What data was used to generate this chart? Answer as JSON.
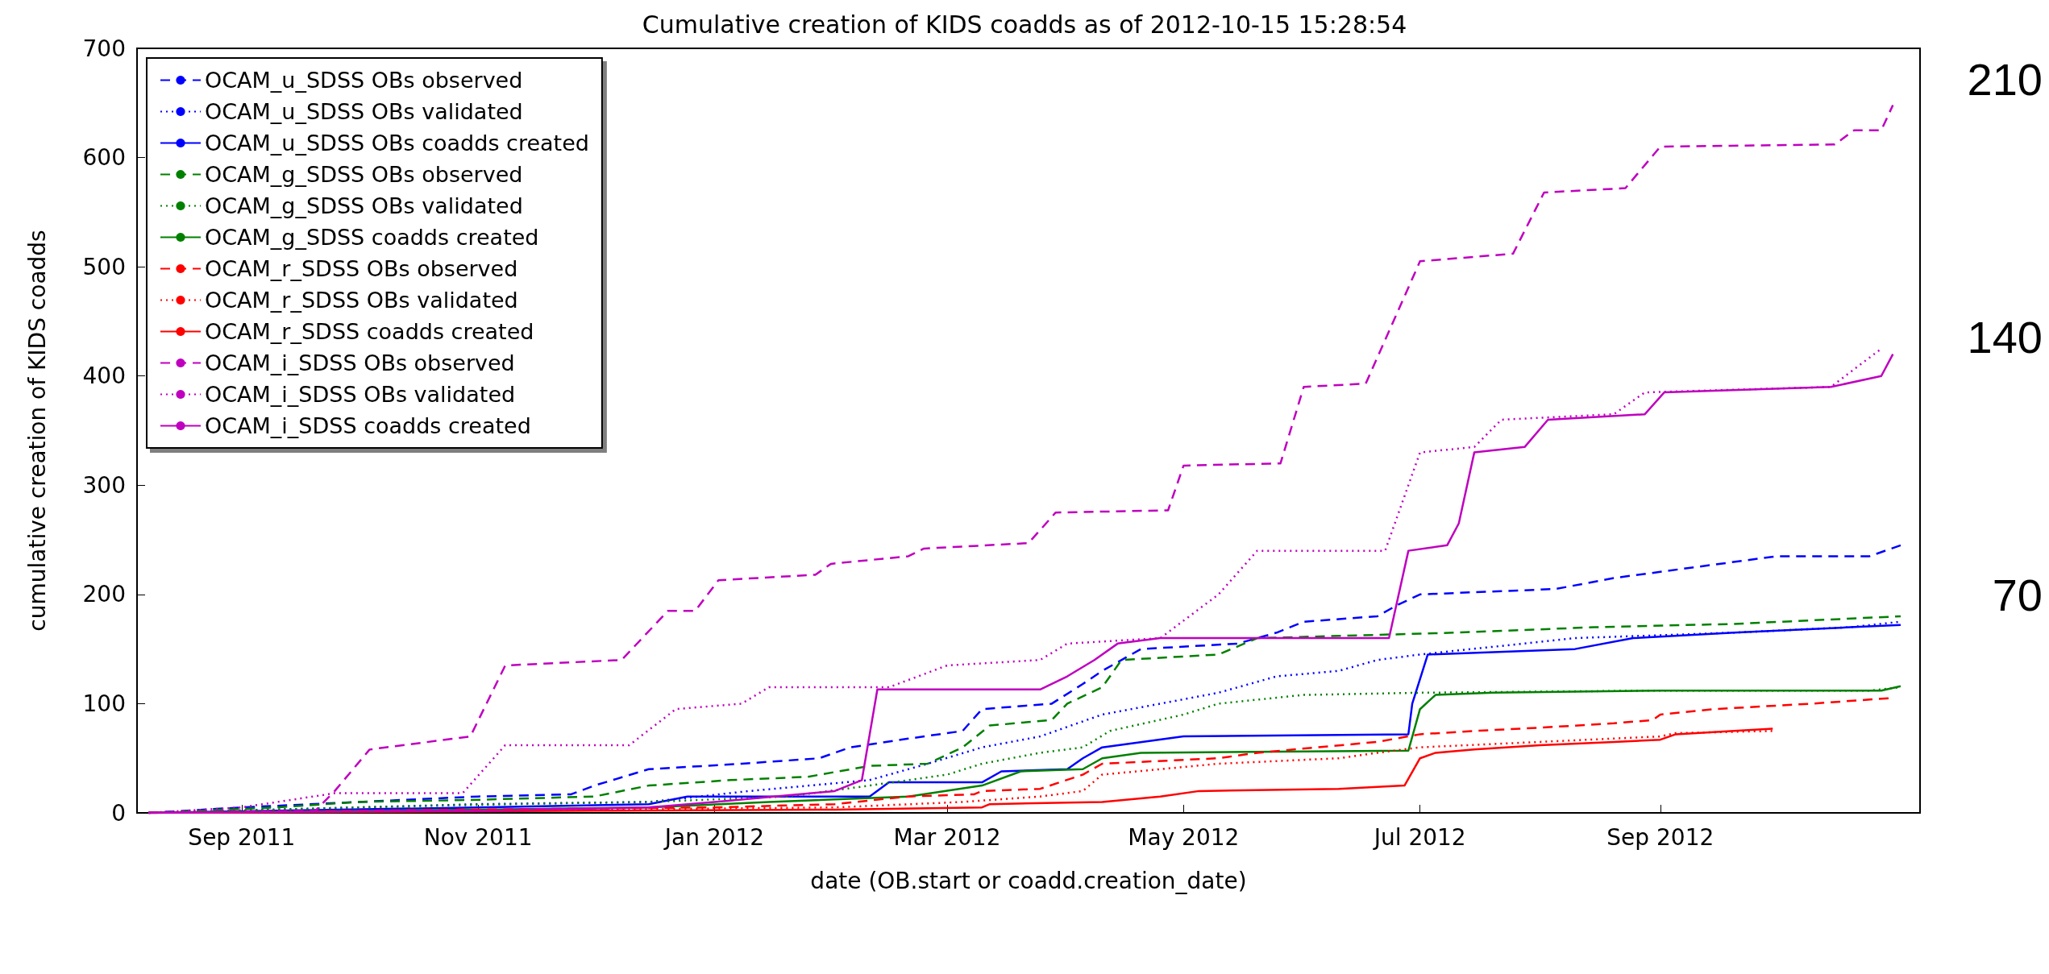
{
  "chart_data": {
    "type": "line",
    "title": "Cumulative creation of KIDS coadds as of 2012-10-15 15:28:54",
    "xlabel": "date (OB.start or coadd.creation_date)",
    "ylabel": "cumulative creation of KIDS coadds",
    "xlim": [
      "2011-08-05",
      "2012-11-07"
    ],
    "xticks": [
      {
        "value": "2011-09-01",
        "label": "Sep 2011"
      },
      {
        "value": "2011-11-01",
        "label": "Nov 2011"
      },
      {
        "value": "2012-01-01",
        "label": "Jan 2012"
      },
      {
        "value": "2012-03-01",
        "label": "Mar 2012"
      },
      {
        "value": "2012-05-01",
        "label": "May 2012"
      },
      {
        "value": "2012-07-01",
        "label": "Jul 2012"
      },
      {
        "value": "2012-09-01",
        "label": "Sep 2012"
      }
    ],
    "ylim": [
      0,
      700
    ],
    "yticks": [
      0,
      100,
      200,
      300,
      400,
      500,
      600,
      700
    ],
    "grid": false,
    "legend": "top left",
    "marker": "none",
    "annotations": [
      "210",
      "140",
      "70"
    ],
    "series": [
      {
        "name": "OCAM_u_SDSS OBs observed",
        "color": "#0000ff",
        "line_style": "dashed",
        "x": [
          "2011-08-08",
          "2011-09-01",
          "2011-10-01",
          "2011-11-01",
          "2011-11-25",
          "2011-12-01",
          "2011-12-15",
          "2012-01-08",
          "2012-01-28",
          "2012-02-05",
          "2012-02-20",
          "2012-03-05",
          "2012-03-10",
          "2012-03-28",
          "2012-04-05",
          "2012-04-10",
          "2012-04-20",
          "2012-05-15",
          "2012-05-25",
          "2012-06-01",
          "2012-06-20",
          "2012-06-25",
          "2012-07-01",
          "2012-08-05",
          "2012-08-20",
          "2012-09-10",
          "2012-10-01",
          "2012-10-25",
          "2012-11-02"
        ],
        "values": [
          0,
          5,
          10,
          15,
          17,
          25,
          40,
          45,
          50,
          60,
          68,
          75,
          95,
          100,
          118,
          130,
          150,
          155,
          165,
          175,
          180,
          190,
          200,
          205,
          215,
          225,
          235,
          235,
          245
        ]
      },
      {
        "name": "OCAM_u_SDSS OBs validated",
        "color": "#0000ff",
        "line_style": "dotted",
        "x": [
          "2011-08-08",
          "2011-10-01",
          "2011-11-01",
          "2011-12-15",
          "2012-01-10",
          "2012-02-10",
          "2012-02-25",
          "2012-03-10",
          "2012-03-25",
          "2012-04-10",
          "2012-04-25",
          "2012-05-10",
          "2012-05-25",
          "2012-06-10",
          "2012-06-20",
          "2012-07-01",
          "2012-08-10",
          "2012-09-20",
          "2012-10-20",
          "2012-11-02"
        ],
        "values": [
          0,
          5,
          8,
          10,
          20,
          30,
          45,
          60,
          70,
          90,
          100,
          110,
          125,
          130,
          140,
          145,
          160,
          165,
          170,
          175
        ]
      },
      {
        "name": "OCAM_u_SDSS OBs coadds created",
        "color": "#0000ff",
        "line_style": "solid",
        "x": [
          "2011-08-08",
          "2011-11-01",
          "2011-12-15",
          "2011-12-25",
          "2012-02-10",
          "2012-02-15",
          "2012-03-10",
          "2012-03-15",
          "2012-04-01",
          "2012-04-05",
          "2012-04-10",
          "2012-05-01",
          "2012-06-28",
          "2012-06-29",
          "2012-07-03",
          "2012-08-10",
          "2012-08-25",
          "2012-09-20",
          "2012-10-20",
          "2012-11-02"
        ],
        "values": [
          0,
          5,
          8,
          15,
          15,
          28,
          28,
          38,
          40,
          50,
          60,
          70,
          72,
          100,
          145,
          150,
          160,
          165,
          170,
          172
        ]
      },
      {
        "name": "OCAM_g_SDSS OBs observed",
        "color": "#008000",
        "line_style": "dashed",
        "x": [
          "2011-08-08",
          "2011-09-10",
          "2011-10-01",
          "2011-11-01",
          "2011-12-01",
          "2011-12-15",
          "2012-01-05",
          "2012-01-25",
          "2012-02-10",
          "2012-02-25",
          "2012-03-05",
          "2012-03-12",
          "2012-03-28",
          "2012-04-01",
          "2012-04-10",
          "2012-04-15",
          "2012-05-10",
          "2012-05-20",
          "2012-06-10",
          "2012-07-10",
          "2012-08-15",
          "2012-09-20",
          "2012-11-02"
        ],
        "values": [
          0,
          5,
          10,
          12,
          15,
          25,
          30,
          33,
          43,
          45,
          60,
          80,
          85,
          100,
          115,
          140,
          145,
          160,
          162,
          165,
          170,
          173,
          180
        ]
      },
      {
        "name": "OCAM_g_SDSS OBs validated",
        "color": "#008000",
        "line_style": "dotted",
        "x": [
          "2011-08-08",
          "2011-10-01",
          "2011-11-10",
          "2011-12-15",
          "2012-01-20",
          "2012-02-10",
          "2012-03-01",
          "2012-03-10",
          "2012-03-25",
          "2012-04-05",
          "2012-04-12",
          "2012-05-01",
          "2012-05-10",
          "2012-06-01",
          "2012-07-01",
          "2012-09-01",
          "2012-10-25",
          "2012-11-02"
        ],
        "values": [
          0,
          5,
          8,
          10,
          15,
          25,
          35,
          45,
          55,
          60,
          75,
          90,
          100,
          108,
          110,
          112,
          112,
          115
        ]
      },
      {
        "name": "OCAM_g_SDSS coadds created",
        "color": "#008000",
        "line_style": "solid",
        "x": [
          "2011-08-08",
          "2011-11-01",
          "2011-12-15",
          "2012-01-15",
          "2012-02-20",
          "2012-03-10",
          "2012-03-20",
          "2012-04-05",
          "2012-04-10",
          "2012-04-20",
          "2012-06-28",
          "2012-07-01",
          "2012-07-05",
          "2012-07-20",
          "2012-09-01",
          "2012-10-28",
          "2012-11-02"
        ],
        "values": [
          0,
          3,
          5,
          10,
          15,
          25,
          38,
          40,
          50,
          55,
          57,
          95,
          108,
          110,
          112,
          112,
          116
        ]
      },
      {
        "name": "OCAM_r_SDSS OBs observed",
        "color": "#ff0000",
        "line_style": "dashed",
        "x": [
          "2011-08-08",
          "2011-11-01",
          "2012-01-01",
          "2012-02-01",
          "2012-02-20",
          "2012-03-08",
          "2012-03-10",
          "2012-03-25",
          "2012-04-05",
          "2012-04-10",
          "2012-05-10",
          "2012-05-20",
          "2012-06-20",
          "2012-07-01",
          "2012-07-15",
          "2012-08-01",
          "2012-08-20",
          "2012-08-30",
          "2012-09-01",
          "2012-09-15",
          "2012-10-10",
          "2012-10-30"
        ],
        "values": [
          0,
          3,
          5,
          8,
          15,
          17,
          20,
          22,
          35,
          45,
          50,
          55,
          65,
          72,
          75,
          78,
          82,
          85,
          90,
          95,
          100,
          105
        ]
      },
      {
        "name": "OCAM_r_SDSS OBs validated",
        "color": "#ff0000",
        "line_style": "dotted",
        "x": [
          "2011-08-08",
          "2011-12-01",
          "2012-02-01",
          "2012-03-05",
          "2012-03-25",
          "2012-04-05",
          "2012-04-10",
          "2012-05-10",
          "2012-06-10",
          "2012-06-20",
          "2012-07-01",
          "2012-08-01",
          "2012-09-01",
          "2012-09-05",
          "2012-09-30"
        ],
        "values": [
          0,
          3,
          5,
          10,
          15,
          20,
          35,
          45,
          50,
          55,
          60,
          65,
          70,
          73,
          75
        ]
      },
      {
        "name": "OCAM_r_SDSS coadds created",
        "color": "#ff0000",
        "line_style": "solid",
        "x": [
          "2011-08-08",
          "2011-12-01",
          "2012-02-01",
          "2012-03-10",
          "2012-03-12",
          "2012-04-10",
          "2012-04-25",
          "2012-05-05",
          "2012-06-10",
          "2012-06-27",
          "2012-07-01",
          "2012-07-05",
          "2012-07-15",
          "2012-08-01",
          "2012-08-20",
          "2012-09-01",
          "2012-09-05",
          "2012-09-20",
          "2012-09-30"
        ],
        "values": [
          0,
          2,
          3,
          5,
          8,
          10,
          15,
          20,
          22,
          25,
          50,
          55,
          58,
          62,
          65,
          67,
          72,
          75,
          77
        ]
      },
      {
        "name": "OCAM_i_SDSS OBs observed",
        "color": "#bf00bf",
        "line_style": "dashed",
        "x": [
          "2011-08-08",
          "2011-09-20",
          "2011-09-25",
          "2011-10-04",
          "2011-10-30",
          "2011-11-08",
          "2011-12-08",
          "2011-12-20",
          "2011-12-27",
          "2012-01-02",
          "2012-01-27",
          "2012-01-31",
          "2012-02-20",
          "2012-02-24",
          "2012-03-22",
          "2012-03-29",
          "2012-04-27",
          "2012-05-01",
          "2012-05-26",
          "2012-06-01",
          "2012-06-17",
          "2012-07-01",
          "2012-07-25",
          "2012-08-02",
          "2012-08-23",
          "2012-09-01",
          "2012-10-16",
          "2012-10-21",
          "2012-10-28",
          "2012-10-31"
        ],
        "values": [
          0,
          2,
          20,
          58,
          70,
          135,
          140,
          185,
          185,
          213,
          218,
          228,
          235,
          242,
          247,
          275,
          277,
          318,
          320,
          390,
          393,
          505,
          512,
          568,
          572,
          610,
          612,
          625,
          625,
          648
        ]
      },
      {
        "name": "OCAM_i_SDSS OBs validated",
        "color": "#bf00bf",
        "line_style": "dotted",
        "x": [
          "2011-08-08",
          "2011-09-01",
          "2011-09-25",
          "2011-10-28",
          "2011-11-08",
          "2011-12-10",
          "2011-12-22",
          "2012-01-08",
          "2012-01-15",
          "2012-02-15",
          "2012-03-01",
          "2012-03-25",
          "2012-04-01",
          "2012-04-25",
          "2012-05-10",
          "2012-05-20",
          "2012-06-22",
          "2012-07-01",
          "2012-07-15",
          "2012-07-22",
          "2012-08-20",
          "2012-08-28",
          "2012-10-15",
          "2012-10-28"
        ],
        "values": [
          0,
          5,
          18,
          18,
          62,
          62,
          95,
          100,
          115,
          115,
          135,
          140,
          155,
          160,
          200,
          240,
          240,
          330,
          335,
          360,
          365,
          385,
          390,
          425
        ]
      },
      {
        "name": "OCAM_i_SDSS coadds created",
        "color": "#bf00bf",
        "line_style": "solid",
        "x": [
          "2011-08-08",
          "2011-11-01",
          "2011-12-15",
          "2012-01-01",
          "2012-02-01",
          "2012-02-08",
          "2012-02-12",
          "2012-03-25",
          "2012-04-01",
          "2012-04-08",
          "2012-04-14",
          "2012-04-25",
          "2012-06-23",
          "2012-06-28",
          "2012-07-08",
          "2012-07-11",
          "2012-07-15",
          "2012-07-28",
          "2012-08-03",
          "2012-08-28",
          "2012-09-02",
          "2012-10-15",
          "2012-10-28",
          "2012-10-31"
        ],
        "values": [
          0,
          2,
          5,
          10,
          20,
          30,
          113,
          113,
          125,
          140,
          155,
          160,
          160,
          240,
          245,
          265,
          330,
          335,
          360,
          365,
          385,
          390,
          400,
          420
        ]
      }
    ]
  }
}
